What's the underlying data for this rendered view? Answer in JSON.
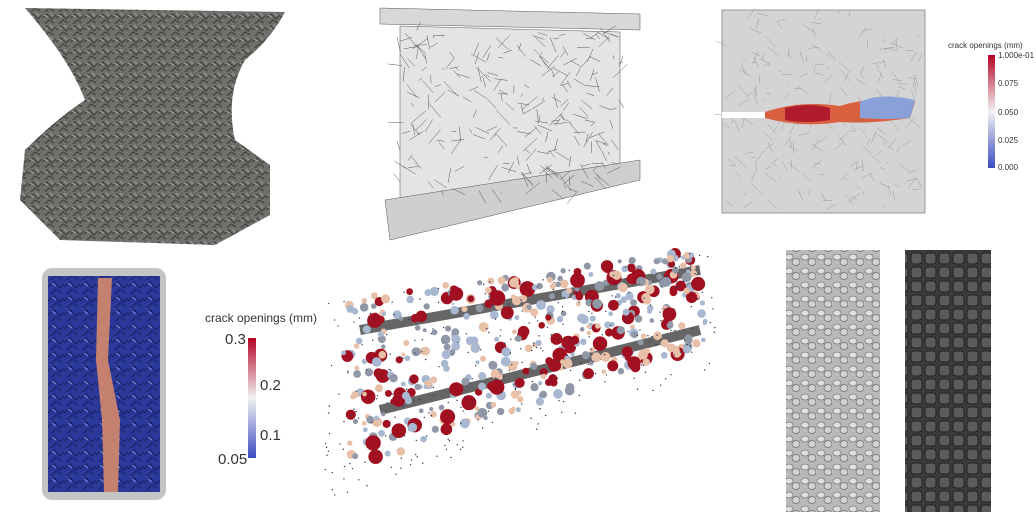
{
  "colorbars": [
    {
      "title": "crack openings (mm)",
      "labels": [
        "1.000e-01",
        "0.075",
        "0.050",
        "0.025",
        "0.000"
      ]
    },
    {
      "title": "crack openings (mm)",
      "labels": [
        "0.3",
        "0.2",
        "0.1",
        "0.05"
      ]
    }
  ]
}
